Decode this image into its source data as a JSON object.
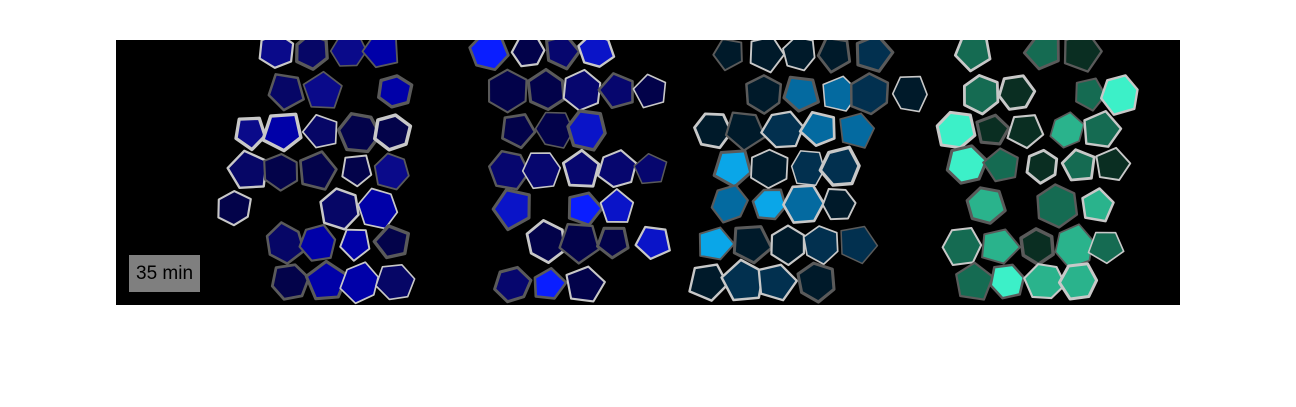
{
  "figure": {
    "time_label": "35 min",
    "colors": {
      "background": "#000000",
      "outline_light": "#c8c8c8",
      "outline_dark": "#5a5a5a",
      "label_bg": "#7f7f7f",
      "panels": [
        {
          "name": "dark-blue",
          "palette": [
            "#03034a",
            "#060666",
            "#0a0a8a",
            "#0000a8"
          ]
        },
        {
          "name": "bright-blue",
          "palette": [
            "#02024a",
            "#06066e",
            "#0a14c8",
            "#0a1eff"
          ]
        },
        {
          "name": "cyan",
          "palette": [
            "#001a2a",
            "#02304f",
            "#046aa0",
            "#0aa6e8"
          ]
        },
        {
          "name": "teal",
          "palette": [
            "#0a2e22",
            "#156b52",
            "#2ab38c",
            "#3cf0c8"
          ]
        }
      ]
    }
  }
}
